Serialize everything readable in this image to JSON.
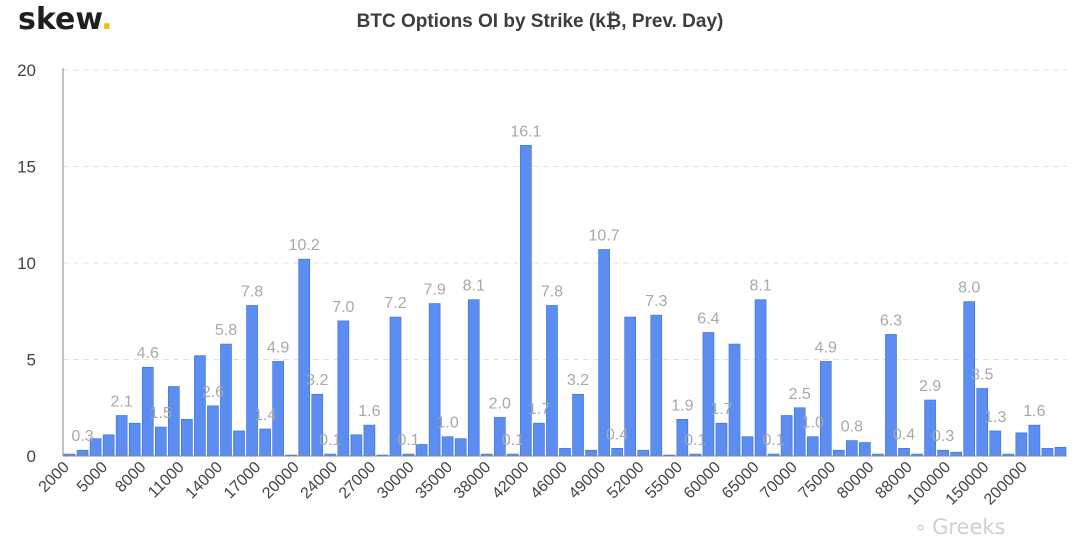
{
  "brand": {
    "name": "skew",
    "dot": "."
  },
  "watermark": {
    "text": "Greeks"
  },
  "colors": {
    "bar": "#5b8ef0",
    "barStroke": "#3a6fd8",
    "label": "#a8a8a8",
    "axis": "#444444",
    "grid": "#e2e2e2",
    "brandDot": "#f5b81c"
  },
  "chart_data": {
    "type": "bar",
    "title": "BTC Options OI by Strike (k₿, Prev. Day)",
    "xlabel": "",
    "ylabel": "",
    "ylim": [
      0,
      20
    ],
    "yticks": [
      "0",
      "5",
      "10",
      "15",
      "20"
    ],
    "grid": true,
    "x_tick_labels": [
      "2000",
      "5000",
      "8000",
      "11000",
      "14000",
      "17000",
      "20000",
      "24000",
      "27000",
      "30000",
      "35000",
      "38000",
      "42000",
      "46000",
      "49000",
      "52000",
      "55000",
      "60000",
      "65000",
      "70000",
      "75000",
      "80000",
      "88000",
      "100000",
      "150000",
      "200000"
    ],
    "values": [
      0.1,
      0.3,
      0.9,
      1.1,
      2.1,
      1.7,
      4.6,
      1.5,
      3.6,
      1.9,
      5.2,
      2.6,
      5.8,
      1.3,
      7.8,
      1.4,
      4.9,
      0.05,
      10.2,
      3.2,
      0.1,
      7.0,
      1.1,
      1.6,
      0.05,
      7.2,
      0.1,
      0.6,
      7.9,
      1.0,
      0.9,
      8.1,
      0.1,
      2.0,
      0.1,
      16.1,
      1.7,
      7.8,
      0.4,
      3.2,
      0.3,
      10.7,
      0.4,
      7.2,
      0.3,
      7.3,
      0.05,
      1.9,
      0.1,
      6.4,
      1.7,
      5.8,
      1.0,
      8.1,
      0.1,
      2.1,
      2.5,
      1.0,
      4.9,
      0.3,
      0.8,
      0.7,
      0.1,
      6.3,
      0.4,
      0.1,
      2.9,
      0.3,
      0.2,
      8.0,
      3.5,
      1.3,
      0.1,
      1.2,
      1.6,
      0.4,
      0.45
    ],
    "data_labels": [
      "",
      "0.3",
      "",
      "",
      "2.1",
      "",
      "4.6",
      "1.5",
      "",
      "",
      "",
      "2.6",
      "5.8",
      "",
      "7.8",
      "1.4",
      "4.9",
      "",
      "10.2",
      "3.2",
      "0.1",
      "7.0",
      "",
      "1.6",
      "",
      "7.2",
      "0.1",
      "",
      "7.9",
      "1.0",
      "",
      "8.1",
      "",
      "2.0",
      "0.1",
      "16.1",
      "1.7",
      "7.8",
      "",
      "3.2",
      "",
      "10.7",
      "0.4",
      "",
      "",
      "7.3",
      "",
      "1.9",
      "0.1",
      "6.4",
      "1.7",
      "",
      "",
      "8.1",
      "0.1",
      "",
      "2.5",
      "1.0",
      "4.9",
      "",
      "0.8",
      "",
      "",
      "6.3",
      "0.4",
      "",
      "2.9",
      "0.3",
      "",
      "8.0",
      "3.5",
      "1.3",
      "",
      "",
      "1.6",
      "",
      ""
    ]
  }
}
